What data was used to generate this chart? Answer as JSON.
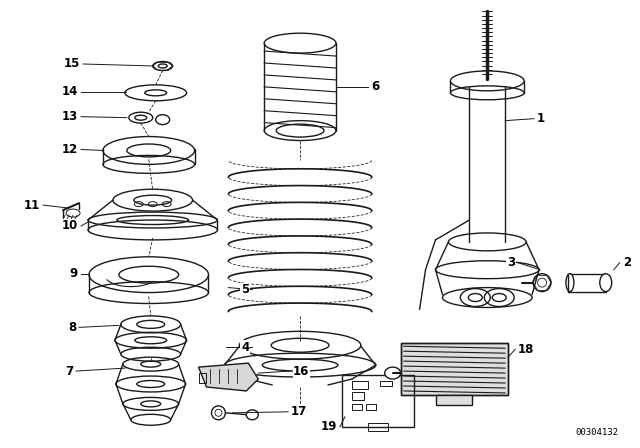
{
  "bg_color": "#ffffff",
  "line_color": "#1a1a1a",
  "fig_width": 6.4,
  "fig_height": 4.48,
  "dpi": 100,
  "watermark": "00304132"
}
